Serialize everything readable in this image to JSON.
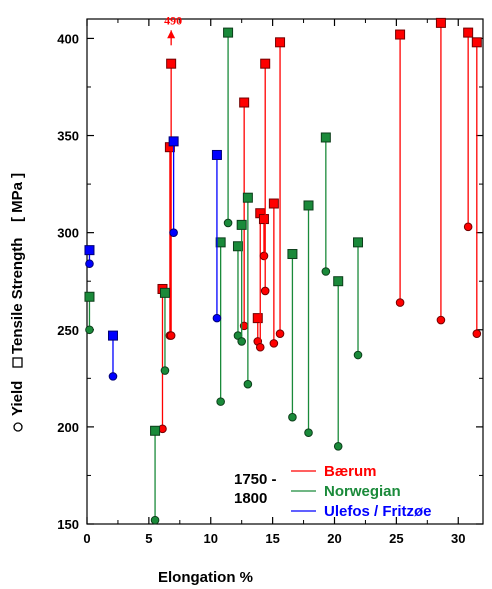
{
  "chart_data": {
    "type": "scatter",
    "xlabel": "Elongation  %",
    "ylabel_parts": {
      "yield": "Yield",
      "tensile": "Tensile Strength",
      "unit": "[ MPa ]"
    },
    "xlim": [
      0,
      32
    ],
    "ylim": [
      150,
      410
    ],
    "xticks": [
      0,
      5,
      10,
      15,
      20,
      25,
      30
    ],
    "yticks": [
      150,
      200,
      250,
      300,
      350,
      400
    ],
    "legend": {
      "period_line1": "1750 -",
      "period_line2": "1800",
      "placement": "bottom-right"
    },
    "annotation": {
      "text": "490",
      "x": 6.8,
      "arrow_y": 398
    },
    "series": [
      {
        "name": "Bærum",
        "color": "#ff0000",
        "pairs": [
          {
            "x": 6.1,
            "yield": 199,
            "tensile": 271
          },
          {
            "x": 6.7,
            "yield": 247,
            "tensile": 344
          },
          {
            "x": 6.8,
            "yield": 247,
            "tensile": 387
          },
          {
            "x": 12.7,
            "yield": 252,
            "tensile": 367
          },
          {
            "x": 13.8,
            "yield": 244,
            "tensile": 256
          },
          {
            "x": 14.0,
            "yield": 241,
            "tensile": 310
          },
          {
            "x": 14.3,
            "yield": 288,
            "tensile": 307
          },
          {
            "x": 14.4,
            "yield": 270,
            "tensile": 387
          },
          {
            "x": 15.1,
            "yield": 243,
            "tensile": 315
          },
          {
            "x": 15.6,
            "yield": 248,
            "tensile": 398
          },
          {
            "x": 25.3,
            "yield": 264,
            "tensile": 402
          },
          {
            "x": 28.6,
            "yield": 255,
            "tensile": 408
          },
          {
            "x": 30.8,
            "yield": 303,
            "tensile": 403
          },
          {
            "x": 31.5,
            "yield": 248,
            "tensile": 398
          }
        ]
      },
      {
        "name": "Norwegian",
        "color": "#1a8a3a",
        "pairs": [
          {
            "x": 0.2,
            "yield": 250,
            "tensile": 267
          },
          {
            "x": 5.5,
            "yield": 152,
            "tensile": 198
          },
          {
            "x": 6.3,
            "yield": 229,
            "tensile": 269
          },
          {
            "x": 10.8,
            "yield": 213,
            "tensile": 295
          },
          {
            "x": 11.4,
            "yield": 305,
            "tensile": 403
          },
          {
            "x": 12.2,
            "yield": 247,
            "tensile": 293
          },
          {
            "x": 12.5,
            "yield": 244,
            "tensile": 304
          },
          {
            "x": 13.0,
            "yield": 222,
            "tensile": 318
          },
          {
            "x": 16.6,
            "yield": 205,
            "tensile": 289
          },
          {
            "x": 17.9,
            "yield": 197,
            "tensile": 314
          },
          {
            "x": 19.3,
            "yield": 280,
            "tensile": 349
          },
          {
            "x": 20.3,
            "yield": 190,
            "tensile": 275
          },
          {
            "x": 21.9,
            "yield": 237,
            "tensile": 295
          }
        ]
      },
      {
        "name": "Ulefos / Fritzøe",
        "color": "#0000ff",
        "pairs": [
          {
            "x": 0.2,
            "yield": 284,
            "tensile": 291
          },
          {
            "x": 2.1,
            "yield": 226,
            "tensile": 247
          },
          {
            "x": 7.0,
            "yield": 300,
            "tensile": 347
          },
          {
            "x": 10.5,
            "yield": 256,
            "tensile": 340
          }
        ]
      }
    ]
  }
}
